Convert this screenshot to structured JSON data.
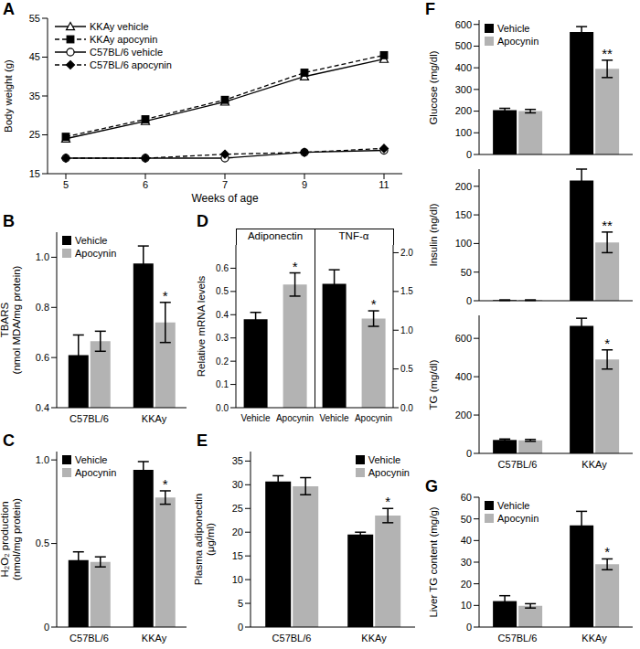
{
  "chart_data": [
    {
      "type": "line",
      "title": "A",
      "x_label": "Weeks of age",
      "y_label": "Body weight (g)",
      "categories": [
        "5",
        "6",
        "7",
        "9",
        "11"
      ],
      "ylim": [
        15,
        55
      ],
      "yticks": [
        15,
        25,
        35,
        45,
        55
      ],
      "legend": "upper left",
      "series": [
        {
          "name": "KKAy vehicle",
          "color": "#000000",
          "marker": "triangle-open",
          "line_style": "solid",
          "values": [
            24,
            28.5,
            33.5,
            40,
            44.5
          ]
        },
        {
          "name": "KKAy apocynin",
          "color": "#000000",
          "marker": "square",
          "line_style": "dashed",
          "values": [
            24.5,
            29,
            34,
            41,
            45.5
          ]
        },
        {
          "name": "C57BL/6 vehicle",
          "color": "#000000",
          "marker": "circle-open",
          "line_style": "solid",
          "values": [
            19,
            19,
            19,
            20.5,
            21
          ]
        },
        {
          "name": "C57BL/6 apocynin",
          "color": "#000000",
          "marker": "diamond",
          "line_style": "dashed",
          "values": [
            19,
            19,
            20,
            20.5,
            21.5
          ]
        }
      ]
    },
    {
      "type": "bar",
      "title": "B",
      "y_label": "TBARS\n(nmol MDA/mg protein)",
      "categories": [
        "C57BL/6",
        "KKAy"
      ],
      "ylim": [
        0.4,
        1.1
      ],
      "yticks": [
        0.4,
        0.6,
        0.8,
        {
          "value": 1,
          "label": "1.0"
        }
      ],
      "legend": "upper left",
      "series": [
        {
          "name": "Vehicle",
          "color": "#000000",
          "values": [
            0.61,
            0.975
          ],
          "errors": [
            0.08,
            0.07
          ]
        },
        {
          "name": "Apocynin",
          "color": "#b3b3b3",
          "values": [
            0.665,
            0.74
          ],
          "errors": [
            0.04,
            0.08
          ]
        }
      ],
      "annotations": [
        {
          "text": "*",
          "category": "KKAy",
          "series": "Apocynin"
        }
      ]
    },
    {
      "type": "bar",
      "title": "C",
      "y_label": "H₂O₂ production\n(nmol/mg protein)",
      "categories": [
        "C57BL/6",
        "KKAy"
      ],
      "ylim": [
        0,
        1.05
      ],
      "yticks": [
        0,
        0.5,
        {
          "value": 1,
          "label": "1.0"
        }
      ],
      "legend": "upper left",
      "series": [
        {
          "name": "Vehicle",
          "color": "#000000",
          "values": [
            0.4,
            0.94
          ],
          "errors": [
            0.05,
            0.05
          ]
        },
        {
          "name": "Apocynin",
          "color": "#b3b3b3",
          "values": [
            0.39,
            0.775
          ],
          "errors": [
            0.03,
            0.04
          ]
        }
      ],
      "annotations": [
        {
          "text": "*",
          "category": "KKAy",
          "series": "Apocynin"
        }
      ]
    },
    {
      "type": "bar",
      "title": "D",
      "y_label": "Relative mRNA levels",
      "categories": [
        "Vehicle",
        "Apocynin",
        "Vehicle",
        "Apocynin"
      ],
      "colors": [
        "#000000",
        "#b3b3b3",
        "#000000",
        "#b3b3b3"
      ],
      "ylim": [
        0,
        0.7
      ],
      "yticks": [
        {
          "value": 0,
          "label": "0.0"
        },
        0.1,
        0.2,
        0.3,
        0.4,
        0.5,
        0.6
      ],
      "y2lim": [
        0,
        2.1
      ],
      "y2ticks": [
        {
          "value": 0,
          "label": "0.0"
        },
        0.5,
        {
          "value": 1,
          "label": "1.0"
        },
        1.5,
        {
          "value": 2,
          "label": "2.0"
        }
      ],
      "series": [
        {
          "name": "Adiponectin",
          "axis": "y",
          "values": [
            0.38,
            0.53,
            null,
            null
          ],
          "errors": [
            0.03,
            0.05,
            null,
            null
          ]
        },
        {
          "name": "TNF-α",
          "axis": "y2",
          "values": [
            null,
            null,
            1.6,
            1.15
          ],
          "errors": [
            null,
            null,
            0.18,
            0.1
          ]
        }
      ],
      "annotations": [
        {
          "text": "*",
          "category": "Apocynin",
          "series": "Adiponectin"
        },
        {
          "text": "*",
          "category": "Apocynin",
          "series": "TNF-α"
        }
      ]
    },
    {
      "type": "bar",
      "title": "E",
      "y_label": "Plasma adiponectin\n(μg/ml)",
      "categories": [
        "C57BL/6",
        "KKAy"
      ],
      "ylim": [
        0,
        37
      ],
      "yticks": [
        0,
        5,
        10,
        15,
        20,
        25,
        30,
        35
      ],
      "legend": "upper right",
      "series": [
        {
          "name": "Vehicle",
          "color": "#000000",
          "values": [
            30.7,
            19.5
          ],
          "errors": [
            1.2,
            0.5
          ]
        },
        {
          "name": "Apocynin",
          "color": "#b3b3b3",
          "values": [
            29.7,
            23.5
          ],
          "errors": [
            1.8,
            1.5
          ]
        }
      ],
      "annotations": [
        {
          "text": "*",
          "category": "KKAy",
          "series": "Apocynin"
        }
      ]
    },
    {
      "type": "bar",
      "title": "F",
      "y_label": "Glucose (mg/dl)",
      "categories": [
        "C57BL/6",
        "KKAy"
      ],
      "tick_labels": "y",
      "ylim": [
        0,
        620
      ],
      "yticks": [
        0,
        100,
        200,
        300,
        400,
        500,
        600
      ],
      "legend": "upper left",
      "series": [
        {
          "name": "Vehicle",
          "color": "#000000",
          "values": [
            205,
            565
          ],
          "errors": [
            8,
            25
          ]
        },
        {
          "name": "Apocynin",
          "color": "#b3b3b3",
          "values": [
            200,
            395
          ],
          "errors": [
            8,
            40
          ]
        }
      ],
      "annotations": [
        {
          "text": "**",
          "category": "KKAy",
          "series": "Apocynin"
        }
      ]
    },
    {
      "type": "bar",
      "y_label": "Insulin (ng/dl)",
      "categories": [
        "C57BL/6",
        "KKAy"
      ],
      "tick_labels": "y",
      "ylim": [
        0,
        230
      ],
      "yticks": [
        0,
        50,
        100,
        150,
        200
      ],
      "series": [
        {
          "name": "Vehicle",
          "color": "#000000",
          "values": [
            1,
            210
          ],
          "errors": [
            0.5,
            20
          ]
        },
        {
          "name": "Apocynin",
          "color": "#b3b3b3",
          "values": [
            1,
            102
          ],
          "errors": [
            0.5,
            18
          ]
        }
      ],
      "annotations": [
        {
          "text": "**",
          "category": "KKAy",
          "series": "Apocynin"
        }
      ]
    },
    {
      "type": "bar",
      "y_label": "TG (mg/dl)",
      "categories": [
        "C57BL/6",
        "KKAy"
      ],
      "ylim": [
        0,
        720
      ],
      "yticks": [
        0,
        200,
        400,
        600
      ],
      "series": [
        {
          "name": "Vehicle",
          "color": "#000000",
          "values": [
            70,
            665
          ],
          "errors": [
            5,
            40
          ]
        },
        {
          "name": "Apocynin",
          "color": "#b3b3b3",
          "values": [
            68,
            490
          ],
          "errors": [
            5,
            50
          ]
        }
      ],
      "annotations": [
        {
          "text": "*",
          "category": "KKAy",
          "series": "Apocynin"
        }
      ]
    },
    {
      "type": "bar",
      "title": "G",
      "y_label": "Liver TG content (mg/g)",
      "categories": [
        "C57BL/6",
        "KKAy"
      ],
      "ylim": [
        0,
        60
      ],
      "yticks": [
        0,
        10,
        20,
        30,
        40,
        50,
        60
      ],
      "legend": "upper left",
      "series": [
        {
          "name": "Vehicle",
          "color": "#000000",
          "values": [
            12,
            47
          ],
          "errors": [
            2.5,
            6.5
          ]
        },
        {
          "name": "Apocynin",
          "color": "#b3b3b3",
          "values": [
            9.8,
            29
          ],
          "errors": [
            1,
            2.5
          ]
        }
      ],
      "annotations": [
        {
          "text": "*",
          "category": "KKAy",
          "series": "Apocynin"
        }
      ]
    }
  ]
}
